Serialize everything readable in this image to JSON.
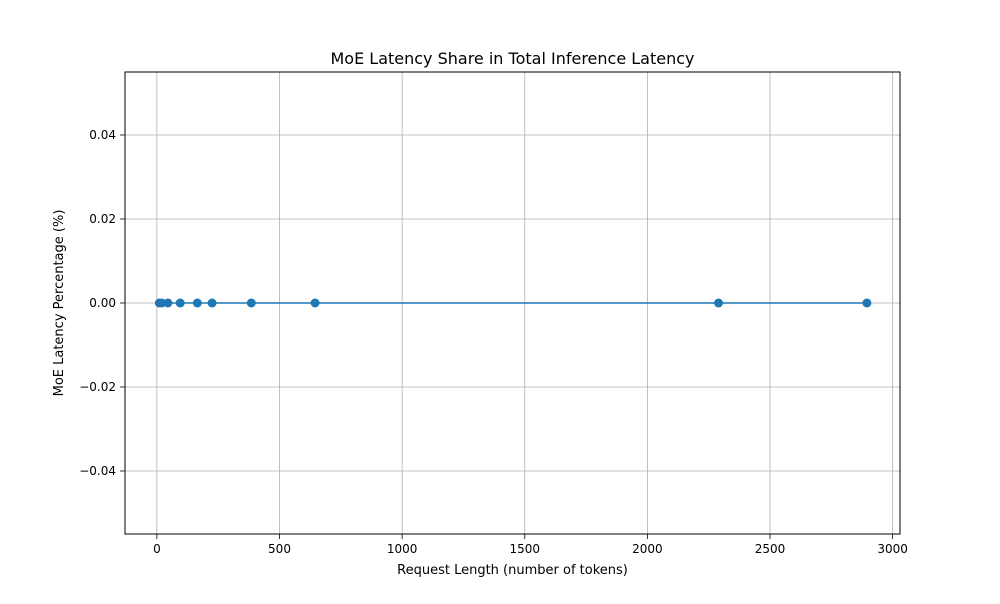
{
  "chart_data": {
    "type": "line",
    "title": "MoE Latency Share in Total Inference Latency",
    "xlabel": "Request Length (number of tokens)",
    "ylabel": "MoE Latency Percentage (%)",
    "xlim": [
      -130,
      3030
    ],
    "ylim": [
      -0.055,
      0.055
    ],
    "grid": true,
    "xticks": [
      0,
      500,
      1000,
      1500,
      2000,
      2500,
      3000
    ],
    "xtick_labels": [
      "0",
      "500",
      "1000",
      "1500",
      "2000",
      "2500",
      "3000"
    ],
    "yticks": [
      -0.04,
      -0.02,
      0.0,
      0.02,
      0.04
    ],
    "ytick_labels": [
      "−0.04",
      "−0.02",
      "0.00",
      "0.02",
      "0.04"
    ],
    "series": [
      {
        "color": "#1f77b4",
        "marker": "circle",
        "x": [
          10,
          20,
          45,
          95,
          165,
          225,
          385,
          645,
          2290,
          2895
        ],
        "y": [
          0,
          0,
          0,
          0,
          0,
          0,
          0,
          0,
          0,
          0
        ]
      }
    ]
  }
}
